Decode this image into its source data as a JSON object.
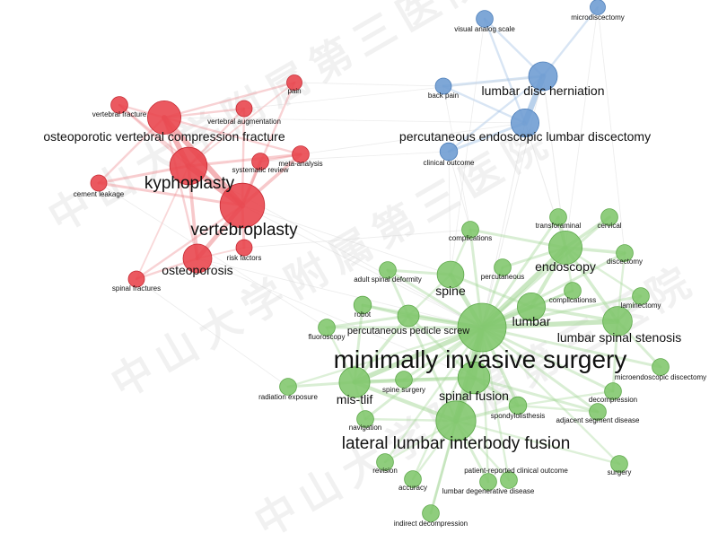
{
  "watermark": "中山大学附属第三医院",
  "clusters": {
    "red": {
      "color": "#e8424a",
      "stroke": "#c62a33",
      "edge": "#ee8c90"
    },
    "blue": {
      "color": "#6c9bd1",
      "stroke": "#4e7fba",
      "edge": "#9bbde3"
    },
    "green": {
      "color": "#7fc66b",
      "stroke": "#5ea94b",
      "edge": "#a8d89b"
    }
  },
  "nodes": [
    {
      "id": "osteoporotic-vertebral-compression-fracture",
      "label": "osteoporotic vertebral compression fracture",
      "cluster": "red",
      "weight": 0.62
    },
    {
      "id": "kyphoplasty",
      "label": "kyphoplasty",
      "cluster": "red",
      "weight": 0.72
    },
    {
      "id": "vertebroplasty",
      "label": "vertebroplasty",
      "cluster": "red",
      "weight": 0.9
    },
    {
      "id": "osteoporosis",
      "label": "osteoporosis",
      "cluster": "red",
      "weight": 0.5
    },
    {
      "id": "vertebral-fracture",
      "label": "vertebral fracture",
      "cluster": "red",
      "weight": 0.2
    },
    {
      "id": "vertebral-augmentation",
      "label": "vertebral augmentation",
      "cluster": "red",
      "weight": 0.18
    },
    {
      "id": "pain",
      "label": "pain",
      "cluster": "red",
      "weight": 0.16
    },
    {
      "id": "meta-analysis",
      "label": "meta-analysis",
      "cluster": "red",
      "weight": 0.2
    },
    {
      "id": "systematic-review",
      "label": "systematic review",
      "cluster": "red",
      "weight": 0.2
    },
    {
      "id": "cement-leakage",
      "label": "cement leakage",
      "cluster": "red",
      "weight": 0.18
    },
    {
      "id": "risk-factors",
      "label": "risk factors",
      "cluster": "red",
      "weight": 0.18
    },
    {
      "id": "spinal-fractures",
      "label": "spinal fractures",
      "cluster": "red",
      "weight": 0.18
    },
    {
      "id": "visual-analog-scale",
      "label": "visual analog scale",
      "cluster": "blue",
      "weight": 0.2
    },
    {
      "id": "microdiscectomy",
      "label": "microdiscectomy",
      "cluster": "blue",
      "weight": 0.16
    },
    {
      "id": "lumbar-disc-herniation",
      "label": "lumbar disc herniation",
      "cluster": "blue",
      "weight": 0.5
    },
    {
      "id": "back-pain",
      "label": "back pain",
      "cluster": "blue",
      "weight": 0.18
    },
    {
      "id": "percutaneous-endoscopic-lumbar-discectomy",
      "label": "percutaneous endoscopic lumbar discectomy",
      "cluster": "blue",
      "weight": 0.48
    },
    {
      "id": "clinical-outcome",
      "label": "clinical outcome",
      "cluster": "blue",
      "weight": 0.22
    },
    {
      "id": "minimally-invasive-surgery",
      "label": "minimally invasive surgery",
      "cluster": "green",
      "weight": 1.0
    },
    {
      "id": "lateral-lumbar-interbody-fusion",
      "label": "lateral lumbar interbody fusion",
      "cluster": "green",
      "weight": 0.78
    },
    {
      "id": "spinal-fusion",
      "label": "spinal fusion",
      "cluster": "green",
      "weight": 0.58
    },
    {
      "id": "endoscopy",
      "label": "endoscopy",
      "cluster": "green",
      "weight": 0.62
    },
    {
      "id": "mis-tlif",
      "label": "mis-tlif",
      "cluster": "green",
      "weight": 0.55
    },
    {
      "id": "lumbar-spinal-stenosis",
      "label": "lumbar spinal stenosis",
      "cluster": "green",
      "weight": 0.52
    },
    {
      "id": "lumbar",
      "label": "lumbar",
      "cluster": "green",
      "weight": 0.48
    },
    {
      "id": "spine",
      "label": "spine",
      "cluster": "green",
      "weight": 0.45
    },
    {
      "id": "percutaneous-pedicle-screw",
      "label": "percutaneous pedicle screw",
      "cluster": "green",
      "weight": 0.32
    },
    {
      "id": "complications",
      "label": "complications",
      "cluster": "green",
      "weight": 0.2
    },
    {
      "id": "transforaminal",
      "label": "transforaminal",
      "cluster": "green",
      "weight": 0.2
    },
    {
      "id": "cervical",
      "label": "cervical",
      "cluster": "green",
      "weight": 0.2
    },
    {
      "id": "discectomy",
      "label": "discectomy",
      "cluster": "green",
      "weight": 0.2
    },
    {
      "id": "adult-spinal-deformity",
      "label": "adult spinal deformity",
      "cluster": "green",
      "weight": 0.2
    },
    {
      "id": "percutaneous",
      "label": "percutaneous",
      "cluster": "green",
      "weight": 0.2
    },
    {
      "id": "complicationss",
      "label": "complicationss",
      "cluster": "green",
      "weight": 0.2
    },
    {
      "id": "laminectomy",
      "label": "laminectomy",
      "cluster": "green",
      "weight": 0.2
    },
    {
      "id": "robot",
      "label": "robot",
      "cluster": "green",
      "weight": 0.22
    },
    {
      "id": "fluoroscopy",
      "label": "fluoroscopy",
      "cluster": "green",
      "weight": 0.2
    },
    {
      "id": "microendoscopic-discectomy",
      "label": "microendoscopic discectomy",
      "cluster": "green",
      "weight": 0.2
    },
    {
      "id": "radiation-exposure",
      "label": "radiation exposure",
      "cluster": "green",
      "weight": 0.2
    },
    {
      "id": "spine-surgery",
      "label": "spine surgery",
      "cluster": "green",
      "weight": 0.2
    },
    {
      "id": "decompression",
      "label": "decompression",
      "cluster": "green",
      "weight": 0.2
    },
    {
      "id": "spondylolisthesis",
      "label": "spondylolisthesis",
      "cluster": "green",
      "weight": 0.22
    },
    {
      "id": "navigation",
      "label": "navigation",
      "cluster": "green",
      "weight": 0.2
    },
    {
      "id": "adjacent-segment-disease",
      "label": "adjacent segment disease",
      "cluster": "green",
      "weight": 0.2
    },
    {
      "id": "revision",
      "label": "revision",
      "cluster": "green",
      "weight": 0.2
    },
    {
      "id": "surgery",
      "label": "surgery",
      "cluster": "green",
      "weight": 0.2
    },
    {
      "id": "patient-reported-clinical-outcome",
      "label": "patient-reported clinical outcome",
      "cluster": "green",
      "weight": 0.2
    },
    {
      "id": "accuracy",
      "label": "accuracy",
      "cluster": "green",
      "weight": 0.2
    },
    {
      "id": "lumbar-degenerative-disease",
      "label": "lumbar degenerative disease",
      "cluster": "green",
      "weight": 0.2
    },
    {
      "id": "indirect-decompression",
      "label": "indirect decompression",
      "cluster": "green",
      "weight": 0.2
    }
  ],
  "links": [
    [
      "vertebroplasty",
      "kyphoplasty",
      1.0
    ],
    [
      "vertebroplasty",
      "osteoporotic-vertebral-compression-fracture",
      0.9
    ],
    [
      "kyphoplasty",
      "osteoporotic-vertebral-compression-fracture",
      0.9
    ],
    [
      "vertebroplasty",
      "osteoporosis",
      0.7
    ],
    [
      "kyphoplasty",
      "osteoporosis",
      0.5
    ],
    [
      "vertebroplasty",
      "meta-analysis",
      0.5
    ],
    [
      "vertebroplasty",
      "systematic-review",
      0.5
    ],
    [
      "kyphoplasty",
      "meta-analysis",
      0.4
    ],
    [
      "vertebroplasty",
      "cement-leakage",
      0.4
    ],
    [
      "kyphoplasty",
      "cement-leakage",
      0.4
    ],
    [
      "vertebroplasty",
      "risk-factors",
      0.4
    ],
    [
      "vertebroplasty",
      "pain",
      0.3
    ],
    [
      "kyphoplasty",
      "vertebral-fracture",
      0.3
    ],
    [
      "vertebroplasty",
      "vertebral-fracture",
      0.3
    ],
    [
      "kyphoplasty",
      "vertebral-augmentation",
      0.3
    ],
    [
      "vertebroplasty",
      "vertebral-augmentation",
      0.3
    ],
    [
      "osteoporotic-vertebral-compression-fracture",
      "vertebral-augmentation",
      0.3
    ],
    [
      "osteoporotic-vertebral-compression-fracture",
      "pain",
      0.3
    ],
    [
      "kyphoplasty",
      "pain",
      0.2
    ],
    [
      "osteoporosis",
      "spinal-fractures",
      0.3
    ],
    [
      "vertebroplasty",
      "spinal-fractures",
      0.3
    ],
    [
      "kyphoplasty",
      "spinal-fractures",
      0.2
    ],
    [
      "osteoporosis",
      "risk-factors",
      0.2
    ],
    [
      "systematic-review",
      "meta-analysis",
      0.3
    ],
    [
      "osteoporotic-vertebral-compression-fracture",
      "meta-analysis",
      0.3
    ],
    [
      "osteoporotic-vertebral-compression-fracture",
      "cement-leakage",
      0.3
    ],
    [
      "osteoporotic-vertebral-compression-fracture",
      "vertebral-fracture",
      0.3
    ],
    [
      "osteoporotic-vertebral-compression-fracture",
      "osteoporosis",
      0.3
    ],
    [
      "lumbar-disc-herniation",
      "percutaneous-endoscopic-lumbar-discectomy",
      1.0
    ],
    [
      "lumbar-disc-herniation",
      "back-pain",
      0.4
    ],
    [
      "lumbar-disc-herniation",
      "microdiscectomy",
      0.3
    ],
    [
      "lumbar-disc-herniation",
      "visual-analog-scale",
      0.3
    ],
    [
      "percutaneous-endoscopic-lumbar-discectomy",
      "clinical-outcome",
      0.4
    ],
    [
      "percutaneous-endoscopic-lumbar-discectomy",
      "visual-analog-scale",
      0.3
    ],
    [
      "percutaneous-endoscopic-lumbar-discectomy",
      "back-pain",
      0.3
    ],
    [
      "lumbar-disc-herniation",
      "clinical-outcome",
      0.3
    ],
    [
      "lumbar-disc-herniation",
      "endoscopy",
      0.4
    ],
    [
      "percutaneous-endoscopic-lumbar-discectomy",
      "endoscopy",
      0.4
    ],
    [
      "lumbar-disc-herniation",
      "minimally-invasive-surgery",
      0.3
    ],
    [
      "percutaneous-endoscopic-lumbar-discectomy",
      "minimally-invasive-surgery",
      0.3
    ],
    [
      "minimally-invasive-surgery",
      "lateral-lumbar-interbody-fusion",
      1.0
    ],
    [
      "minimally-invasive-surgery",
      "spinal-fusion",
      0.9
    ],
    [
      "minimally-invasive-surgery",
      "endoscopy",
      0.8
    ],
    [
      "minimally-invasive-surgery",
      "mis-tlif",
      0.8
    ],
    [
      "minimally-invasive-surgery",
      "lumbar-spinal-stenosis",
      0.8
    ],
    [
      "minimally-invasive-surgery",
      "lumbar",
      0.7
    ],
    [
      "minimally-invasive-surgery",
      "spine",
      0.7
    ],
    [
      "minimally-invasive-surgery",
      "percutaneous-pedicle-screw",
      0.6
    ],
    [
      "minimally-invasive-surgery",
      "complications",
      0.4
    ],
    [
      "minimally-invasive-surgery",
      "transforaminal",
      0.4
    ],
    [
      "minimally-invasive-surgery",
      "cervical",
      0.4
    ],
    [
      "minimally-invasive-surgery",
      "discectomy",
      0.4
    ],
    [
      "minimally-invasive-surgery",
      "adult-spinal-deformity",
      0.4
    ],
    [
      "minimally-invasive-surgery",
      "percutaneous",
      0.4
    ],
    [
      "minimally-invasive-surgery",
      "complicationss",
      0.4
    ],
    [
      "minimally-invasive-surgery",
      "laminectomy",
      0.4
    ],
    [
      "minimally-invasive-surgery",
      "robot",
      0.4
    ],
    [
      "minimally-invasive-surgery",
      "fluoroscopy",
      0.4
    ],
    [
      "minimally-invasive-surgery",
      "microendoscopic-discectomy",
      0.4
    ],
    [
      "minimally-invasive-surgery",
      "radiation-exposure",
      0.3
    ],
    [
      "minimally-invasive-surgery",
      "spine-surgery",
      0.4
    ],
    [
      "minimally-invasive-surgery",
      "decompression",
      0.4
    ],
    [
      "minimally-invasive-surgery",
      "spondylolisthesis",
      0.5
    ],
    [
      "minimally-invasive-surgery",
      "navigation",
      0.4
    ],
    [
      "minimally-invasive-surgery",
      "adjacent-segment-disease",
      0.4
    ],
    [
      "minimally-invasive-surgery",
      "revision",
      0.3
    ],
    [
      "minimally-invasive-surgery",
      "surgery",
      0.3
    ],
    [
      "minimally-invasive-surgery",
      "patient-reported-clinical-outcome",
      0.3
    ],
    [
      "minimally-invasive-surgery",
      "accuracy",
      0.3
    ],
    [
      "minimally-invasive-surgery",
      "lumbar-degenerative-disease",
      0.3
    ],
    [
      "minimally-invasive-surgery",
      "indirect-decompression",
      0.3
    ],
    [
      "lateral-lumbar-interbody-fusion",
      "spinal-fusion",
      0.8
    ],
    [
      "lateral-lumbar-interbody-fusion",
      "mis-tlif",
      0.6
    ],
    [
      "lateral-lumbar-interbody-fusion",
      "indirect-decompression",
      0.4
    ],
    [
      "lateral-lumbar-interbody-fusion",
      "lumbar-degenerative-disease",
      0.4
    ],
    [
      "lateral-lumbar-interbody-fusion",
      "adult-spinal-deformity",
      0.4
    ],
    [
      "lateral-lumbar-interbody-fusion",
      "spondylolisthesis",
      0.5
    ],
    [
      "lateral-lumbar-interbody-fusion",
      "revision",
      0.3
    ],
    [
      "lateral-lumbar-interbody-fusion",
      "accuracy",
      0.3
    ],
    [
      "lateral-lumbar-interbody-fusion",
      "patient-reported-clinical-outcome",
      0.3
    ],
    [
      "lateral-lumbar-interbody-fusion",
      "navigation",
      0.3
    ],
    [
      "lateral-lumbar-interbody-fusion",
      "surgery",
      0.3
    ],
    [
      "spinal-fusion",
      "mis-tlif",
      0.6
    ],
    [
      "spinal-fusion",
      "spondylolisthesis",
      0.5
    ],
    [
      "spinal-fusion",
      "percutaneous-pedicle-screw",
      0.4
    ],
    [
      "spinal-fusion",
      "adjacent-segment-disease",
      0.4
    ],
    [
      "spinal-fusion",
      "spine-surgery",
      0.3
    ],
    [
      "mis-tlif",
      "percutaneous-pedicle-screw",
      0.5
    ],
    [
      "mis-tlif",
      "spine-surgery",
      0.4
    ],
    [
      "mis-tlif",
      "robot",
      0.4
    ],
    [
      "mis-tlif",
      "navigation",
      0.3
    ],
    [
      "mis-tlif",
      "radiation-exposure",
      0.4
    ],
    [
      "mis-tlif",
      "fluoroscopy",
      0.3
    ],
    [
      "percutaneous-pedicle-screw",
      "robot",
      0.4
    ],
    [
      "percutaneous-pedicle-screw",
      "fluoroscopy",
      0.4
    ],
    [
      "percutaneous-pedicle-screw",
      "spine",
      0.3
    ],
    [
      "endoscopy",
      "lumbar",
      0.6
    ],
    [
      "endoscopy",
      "lumbar-spinal-stenosis",
      0.5
    ],
    [
      "endoscopy",
      "transforaminal",
      0.5
    ],
    [
      "endoscopy",
      "cervical",
      0.5
    ],
    [
      "endoscopy",
      "discectomy",
      0.5
    ],
    [
      "endoscopy",
      "percutaneous",
      0.4
    ],
    [
      "endoscopy",
      "complications",
      0.4
    ],
    [
      "endoscopy",
      "complicationss",
      0.3
    ],
    [
      "endoscopy",
      "laminectomy",
      0.3
    ],
    [
      "lumbar",
      "lumbar-spinal-stenosis",
      0.5
    ],
    [
      "lumbar",
      "complicationss",
      0.3
    ],
    [
      "lumbar",
      "spine",
      0.4
    ],
    [
      "lumbar-spinal-stenosis",
      "laminectomy",
      0.4
    ],
    [
      "lumbar-spinal-stenosis",
      "decompression",
      0.4
    ],
    [
      "lumbar-spinal-stenosis",
      "microendoscopic-discectomy",
      0.4
    ],
    [
      "lumbar-spinal-stenosis",
      "discectomy",
      0.3
    ],
    [
      "spine",
      "adult-spinal-deformity",
      0.4
    ],
    [
      "spine",
      "complications",
      0.3
    ],
    [
      "spondylolisthesis",
      "adjacent-segment-disease",
      0.3
    ],
    [
      "spondylolisthesis",
      "decompression",
      0.3
    ],
    [
      "vertebroplasty",
      "minimally-invasive-surgery",
      0.25
    ],
    [
      "kyphoplasty",
      "minimally-invasive-surgery",
      0.2
    ],
    [
      "vertebroplasty",
      "spine",
      0.2
    ],
    [
      "osteoporosis",
      "spinal-fusion",
      0.2
    ],
    [
      "osteoporosis",
      "minimally-invasive-surgery",
      0.2
    ],
    [
      "osteoporotic-vertebral-compression-fracture",
      "percutaneous-endoscopic-lumbar-discectomy",
      0.15
    ],
    [
      "vertebral-augmentation",
      "lumbar-disc-herniation",
      0.15
    ],
    [
      "meta-analysis",
      "percutaneous-endoscopic-lumbar-discectomy",
      0.2
    ],
    [
      "systematic-review",
      "clinical-outcome",
      0.2
    ],
    [
      "pain",
      "back-pain",
      0.2
    ],
    [
      "risk-factors",
      "complications",
      0.2
    ],
    [
      "spinal-fractures",
      "radiation-exposure",
      0.15
    ],
    [
      "cement-leakage",
      "fluoroscopy",
      0.15
    ],
    [
      "clinical-outcome",
      "spine",
      0.2
    ],
    [
      "clinical-outcome",
      "complications",
      0.2
    ],
    [
      "back-pain",
      "complications",
      0.15
    ],
    [
      "microdiscectomy",
      "discectomy",
      0.2
    ],
    [
      "microdiscectomy",
      "endoscopy",
      0.2
    ],
    [
      "visual-analog-scale",
      "spine",
      0.15
    ]
  ]
}
